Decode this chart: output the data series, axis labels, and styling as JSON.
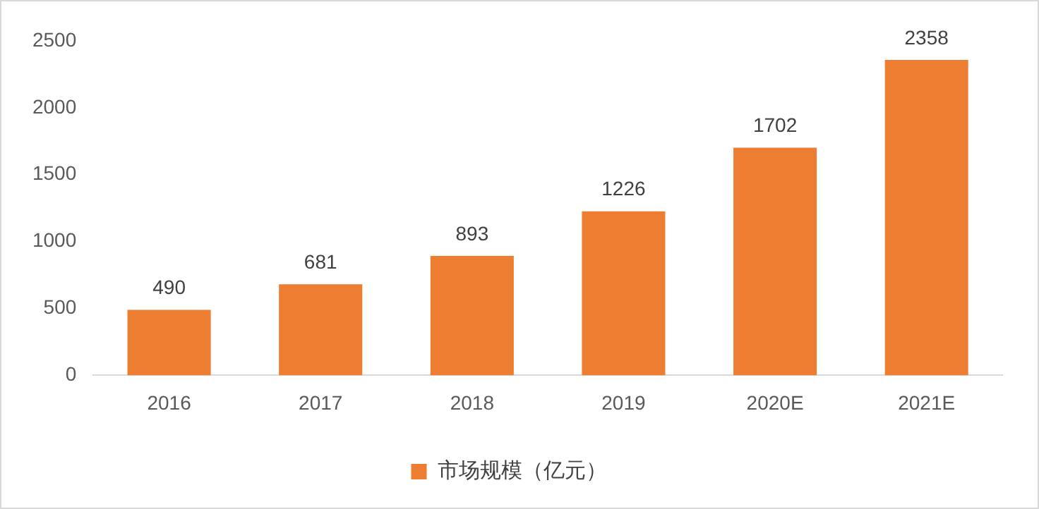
{
  "chart_data": {
    "type": "bar",
    "categories": [
      "2016",
      "2017",
      "2018",
      "2019",
      "2020E",
      "2021E"
    ],
    "series": [
      {
        "name": "市场规模（亿元）",
        "color": "#ed7d31",
        "values": [
          490,
          681,
          893,
          1226,
          1702,
          2358
        ]
      }
    ],
    "ylim": [
      0,
      2500
    ],
    "yticks": [
      0,
      500,
      1000,
      1500,
      2000,
      2500
    ],
    "grid": false,
    "legend": "bottom",
    "data_labels": true
  }
}
